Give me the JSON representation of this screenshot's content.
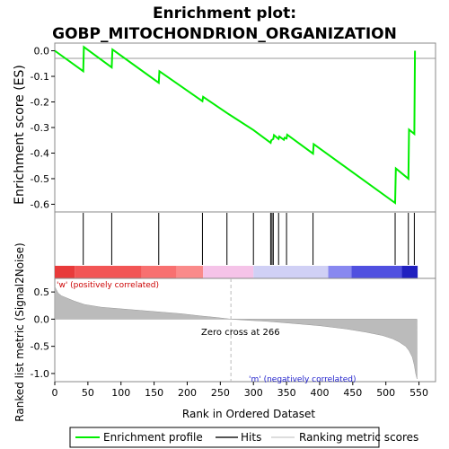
{
  "chart_data": {
    "title_line1": "Enrichment plot:",
    "title_line2": "GOBP_MITOCHONDRION_ORGANIZATION",
    "es_panel": {
      "type": "line",
      "ylabel": "Enrichment score (ES)",
      "ylim": [
        -0.63,
        0.03
      ],
      "yticks": [
        0.0,
        -0.1,
        -0.2,
        -0.3,
        -0.4,
        -0.5,
        -0.6
      ],
      "ytick_labels": [
        "0.0",
        "-0.1",
        "-0.2",
        "-0.3",
        "-0.4",
        "-0.5",
        "-0.6"
      ],
      "line_color": "#00ee00",
      "x": [
        0,
        43,
        44,
        86,
        87,
        157,
        158,
        223,
        224,
        260,
        300,
        326,
        327,
        330,
        331,
        338,
        339,
        346,
        347,
        350,
        351,
        390,
        391,
        514,
        515,
        534,
        535,
        543,
        544
      ],
      "y": [
        0.0,
        -0.08,
        0.015,
        -0.065,
        0.005,
        -0.125,
        -0.08,
        -0.197,
        -0.18,
        -0.243,
        -0.31,
        -0.36,
        -0.35,
        -0.345,
        -0.33,
        -0.345,
        -0.335,
        -0.348,
        -0.34,
        -0.343,
        -0.328,
        -0.402,
        -0.365,
        -0.595,
        -0.46,
        -0.5,
        -0.308,
        -0.325,
        0.0
      ]
    },
    "hits_panel": {
      "hit_positions": [
        43,
        86,
        157,
        223,
        260,
        300,
        326,
        328,
        330,
        338,
        350,
        390,
        514,
        534,
        543
      ]
    },
    "metric_panel": {
      "ylabel": "Ranked list metric (Signal2Noise)",
      "xlabel": "Rank in Ordered Dataset",
      "ylim": [
        -1.15,
        0.75
      ],
      "yticks": [
        0.5,
        0.0,
        -0.5,
        -1.0
      ],
      "ytick_labels": [
        "0.5",
        "0.0",
        "-0.5",
        "-1.0"
      ],
      "xlim": [
        0,
        575
      ],
      "xticks": [
        0,
        50,
        100,
        150,
        200,
        250,
        300,
        350,
        400,
        450,
        500,
        550
      ],
      "xtick_labels": [
        "0",
        "50",
        "100",
        "150",
        "200",
        "250",
        "300",
        "350",
        "400",
        "450",
        "500",
        "550"
      ],
      "n_genes": 548,
      "zero_cross": 266,
      "zero_cross_label": "Zero cross at 266",
      "pos_label": "'w' (positively correlated)",
      "neg_label": "'m' (negatively correlated)",
      "fill_color": "#bbbbbb",
      "curve_ranks": [
        0,
        2,
        5,
        10,
        20,
        30,
        45,
        70,
        100,
        130,
        160,
        190,
        220,
        245,
        266,
        290,
        320,
        360,
        400,
        440,
        470,
        495,
        510,
        520,
        530,
        535,
        540,
        543,
        545,
        547
      ],
      "curve_values": [
        0.6,
        0.55,
        0.48,
        0.43,
        0.38,
        0.33,
        0.27,
        0.22,
        0.19,
        0.16,
        0.13,
        0.1,
        0.06,
        0.03,
        0.0,
        -0.02,
        -0.04,
        -0.08,
        -0.12,
        -0.18,
        -0.24,
        -0.3,
        -0.36,
        -0.42,
        -0.5,
        -0.58,
        -0.7,
        -0.85,
        -1.0,
        -1.1
      ]
    },
    "color_bar": [
      {
        "color": "#e83a3a",
        "from": 0,
        "to": 30
      },
      {
        "color": "#f25555",
        "from": 30,
        "to": 131
      },
      {
        "color": "#f87070",
        "from": 131,
        "to": 184
      },
      {
        "color": "#fa8a8a",
        "from": 184,
        "to": 224
      },
      {
        "color": "#f5c3e8",
        "from": 224,
        "to": 300
      },
      {
        "color": "#d0d0f5",
        "from": 300,
        "to": 413
      },
      {
        "color": "#8888f0",
        "from": 413,
        "to": 448
      },
      {
        "color": "#5050e0",
        "from": 448,
        "to": 524
      },
      {
        "color": "#2020c0",
        "from": 524,
        "to": 548
      }
    ],
    "legend": [
      "Enrichment profile",
      "Hits",
      "Ranking metric scores"
    ]
  }
}
